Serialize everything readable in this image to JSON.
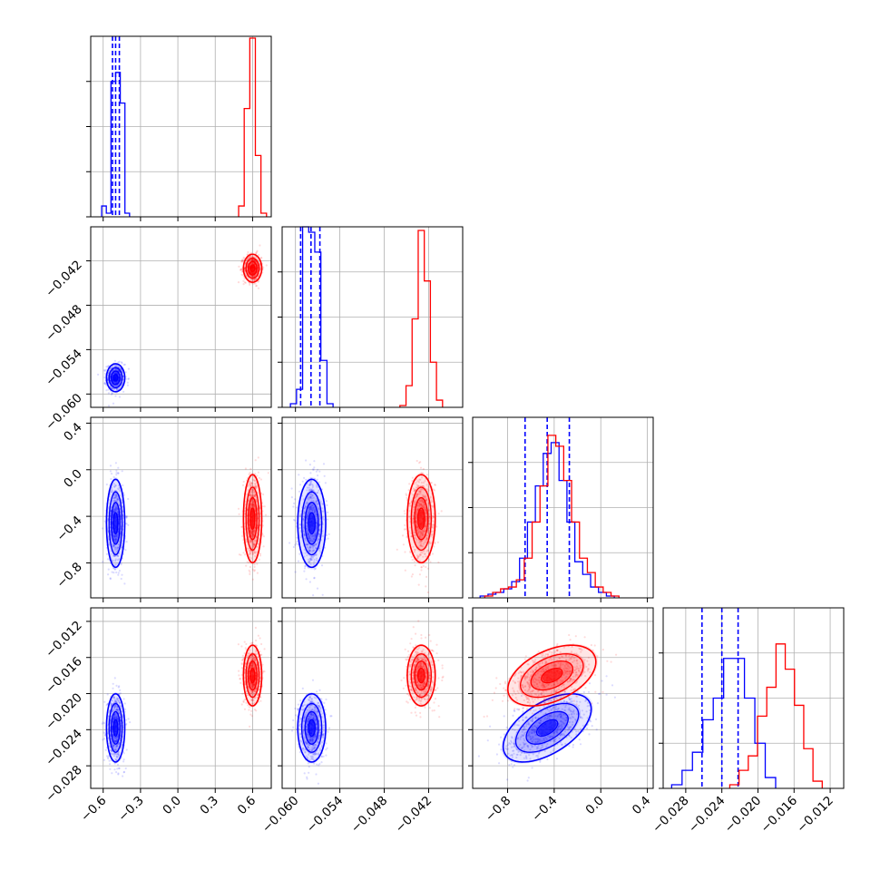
{
  "chart_data": {
    "type": "corner",
    "grid": true,
    "variables": [
      {
        "range": [
          -0.7,
          0.75
        ],
        "ticks": [
          -0.6,
          -0.3,
          0.0,
          0.3,
          0.6
        ],
        "tick_labels": [
          "−0.6",
          "−0.3",
          "0.0",
          "0.3",
          "0.6"
        ]
      },
      {
        "range": [
          -0.0618,
          -0.0374
        ],
        "ticks": [
          -0.06,
          -0.054,
          -0.048,
          -0.042
        ],
        "tick_labels": [
          "−0.060",
          "−0.054",
          "−0.048",
          "−0.042"
        ]
      },
      {
        "range": [
          -1.1,
          0.45
        ],
        "ticks": [
          -0.8,
          -0.4,
          0.0,
          0.4
        ],
        "tick_labels": [
          "−0.8",
          "−0.4",
          "0.0",
          "0.4"
        ]
      },
      {
        "range": [
          -0.0305,
          -0.0105
        ],
        "ticks": [
          -0.028,
          -0.024,
          -0.02,
          -0.016,
          -0.012
        ],
        "tick_labels": [
          "−0.028",
          "−0.024",
          "−0.020",
          "−0.016",
          "−0.012"
        ]
      }
    ],
    "series": [
      {
        "color": "#0000ff",
        "mean": [
          -0.5,
          -0.0578,
          -0.46,
          -0.0238
        ],
        "std": [
          0.035,
          0.0009,
          0.18,
          0.0018
        ],
        "corr": {
          "2-3": 0.55
        },
        "quantile_lines": [
          [
            -0.525,
            -0.5,
            -0.47
          ],
          [
            -0.0593,
            -0.0579,
            -0.0567
          ],
          [
            -0.65,
            -0.46,
            -0.27
          ],
          [
            -0.0262,
            -0.024,
            -0.0222
          ]
        ],
        "hist_heights": [
          [
            0.06,
            0.02,
            0.75,
            0.8,
            0.63,
            0.02
          ],
          [
            0.02,
            0.1,
            1.0,
            0.97,
            0.86,
            0.26,
            0.02
          ],
          [
            0.01,
            0.02,
            0.03,
            0.05,
            0.09,
            0.22,
            0.42,
            0.62,
            0.8,
            0.86,
            0.65,
            0.42,
            0.2,
            0.13,
            0.06,
            0.03,
            0.01
          ],
          [
            0.02,
            0.1,
            0.2,
            0.38,
            0.5,
            0.72,
            0.72,
            0.5,
            0.25,
            0.06
          ]
        ]
      },
      {
        "color": "#ff0000",
        "mean": [
          0.6,
          -0.043,
          -0.42,
          -0.018
        ],
        "std": [
          0.035,
          0.0009,
          0.18,
          0.0016
        ],
        "corr": {
          "2-3": 0.45
        },
        "hist_heights": [
          [
            0.06,
            0.6,
            0.99,
            0.34,
            0.02
          ],
          [
            0.01,
            0.12,
            0.49,
            0.98,
            0.7,
            0.25,
            0.04
          ],
          [
            0.01,
            0.03,
            0.05,
            0.06,
            0.1,
            0.22,
            0.42,
            0.62,
            0.9,
            0.84,
            0.65,
            0.42,
            0.22,
            0.14,
            0.06,
            0.03,
            0.01
          ],
          [
            0.02,
            0.1,
            0.18,
            0.4,
            0.56,
            0.8,
            0.66,
            0.46,
            0.22,
            0.04
          ]
        ]
      }
    ]
  }
}
